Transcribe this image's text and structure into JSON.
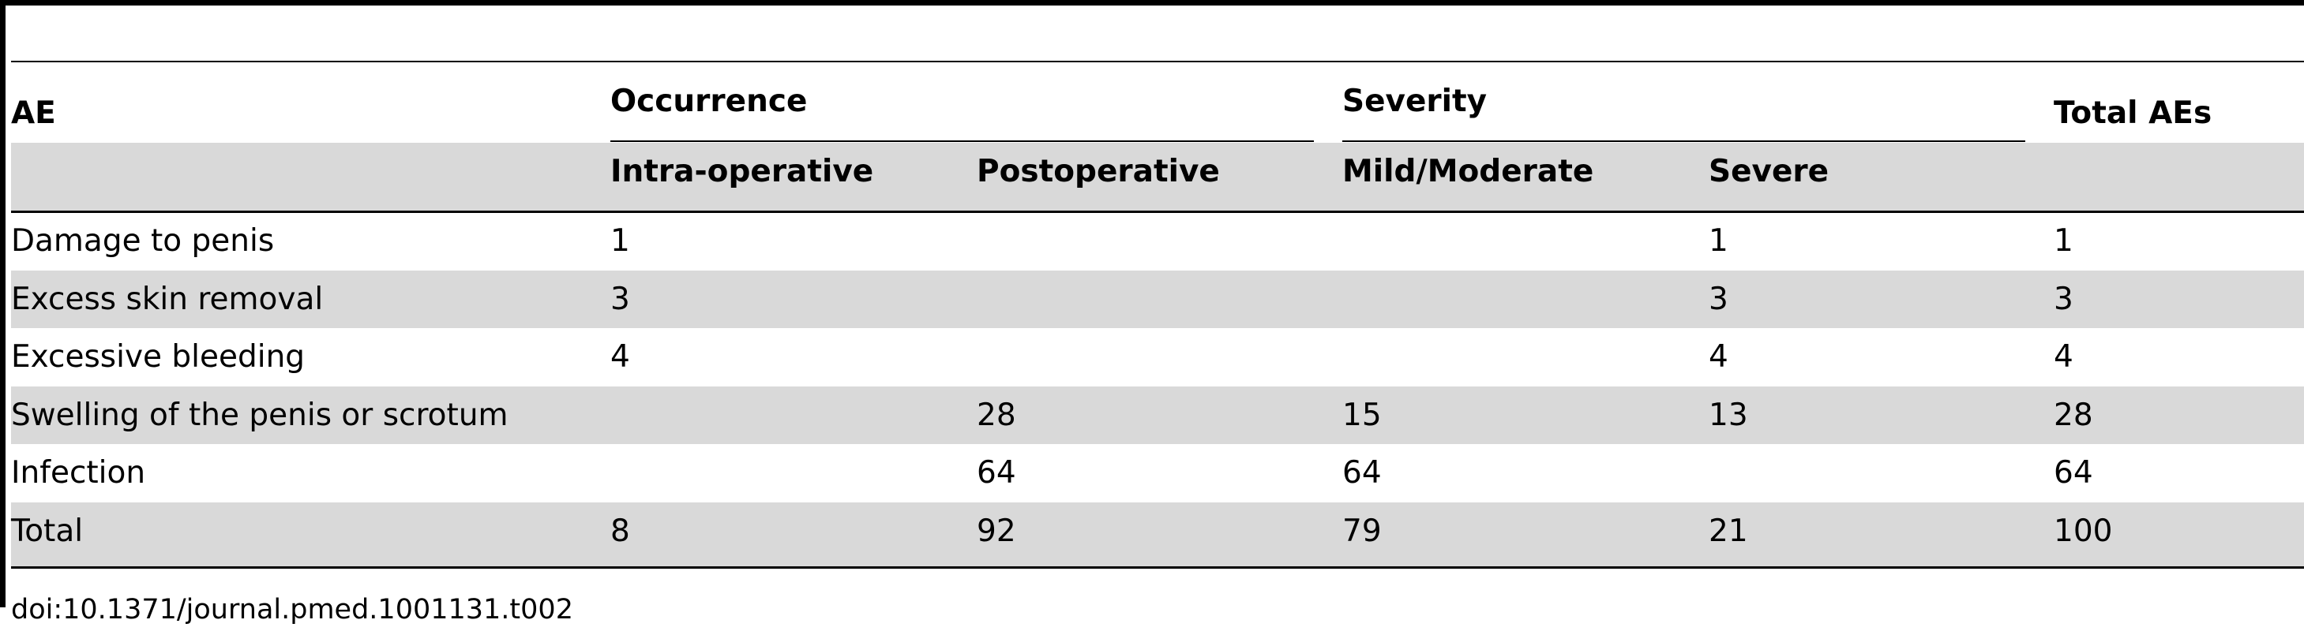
{
  "table": {
    "headers": {
      "ae": "AE",
      "occurrence": "Occurrence",
      "severity": "Severity",
      "total_aes": "Total AEs",
      "intra_operative": "Intra-operative",
      "postoperative": "Postoperative",
      "mild_moderate": "Mild/Moderate",
      "severe": "Severe"
    },
    "rows": [
      {
        "ae": "Damage to penis",
        "intra": "1",
        "post": "",
        "mild": "",
        "severe": "1",
        "total": "1"
      },
      {
        "ae": "Excess skin removal",
        "intra": "3",
        "post": "",
        "mild": "",
        "severe": "3",
        "total": "3"
      },
      {
        "ae": "Excessive bleeding",
        "intra": "4",
        "post": "",
        "mild": "",
        "severe": "4",
        "total": "4"
      },
      {
        "ae": "Swelling of the penis or scrotum",
        "intra": "",
        "post": "28",
        "mild": "15",
        "severe": "13",
        "total": "28"
      },
      {
        "ae": "Infection",
        "intra": "",
        "post": "64",
        "mild": "64",
        "severe": "",
        "total": "64"
      },
      {
        "ae": "Total",
        "intra": "8",
        "post": "92",
        "mild": "79",
        "severe": "21",
        "total": "100"
      }
    ]
  },
  "footnote": "doi:10.1371/journal.pmed.1001131.t002"
}
